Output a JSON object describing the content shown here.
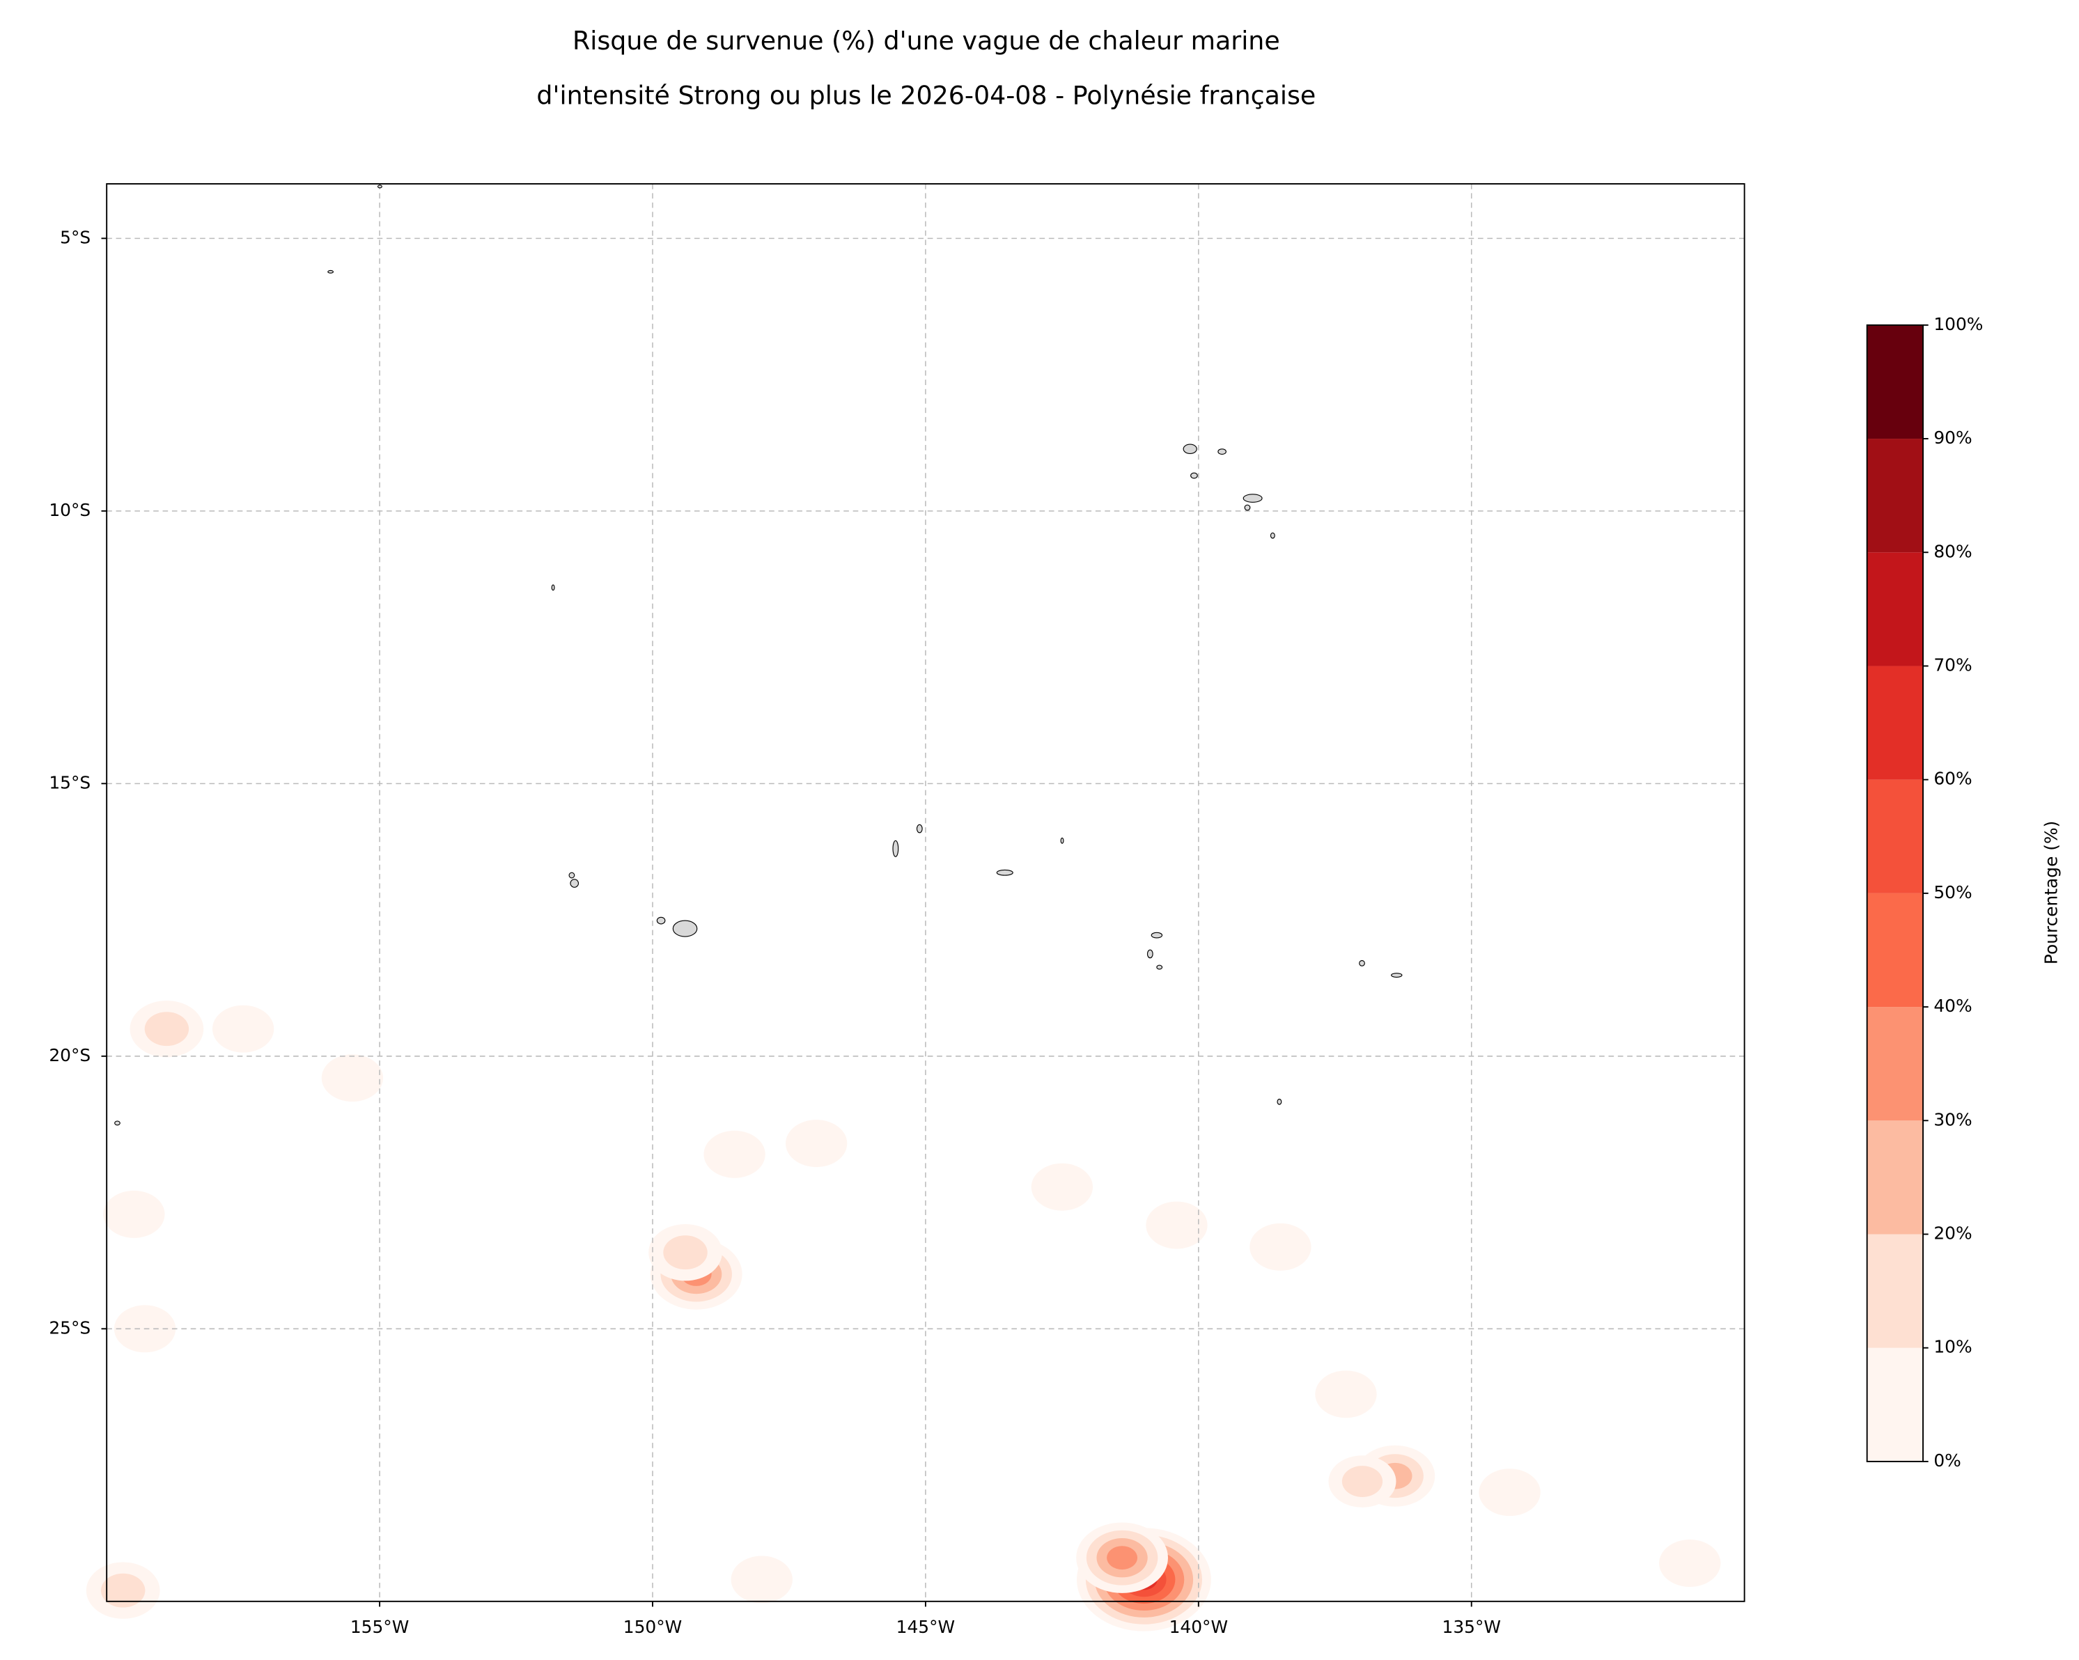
{
  "chart_data": {
    "type": "contour-map",
    "title_lines": [
      "Risque de survenue (%) d'une vague de chaleur marine",
      "d'intensité Strong ou plus le 2026-04-08 - Polynésie française"
    ],
    "xlim": [
      -160,
      -130
    ],
    "ylim": [
      -30,
      -4
    ],
    "xticks": [
      {
        "value": -155,
        "label": "155°W"
      },
      {
        "value": -150,
        "label": "150°W"
      },
      {
        "value": -145,
        "label": "145°W"
      },
      {
        "value": -140,
        "label": "140°W"
      },
      {
        "value": -135,
        "label": "135°W"
      }
    ],
    "yticks": [
      {
        "value": -5,
        "label": "5°S"
      },
      {
        "value": -10,
        "label": "10°S"
      },
      {
        "value": -15,
        "label": "15°S"
      },
      {
        "value": -20,
        "label": "20°S"
      },
      {
        "value": -25,
        "label": "25°S"
      }
    ],
    "grid": true,
    "field": {
      "lon": [
        -141.0,
        -141.4,
        -149.2,
        -149.4,
        -136.4,
        -137.0,
        -158.9,
        -157.5,
        -155.5,
        -147.0,
        -148.5,
        -159.3,
        -159.5,
        -142.5,
        -138.5,
        -159.7,
        -148.0,
        -131.0,
        -140.4,
        -134.3,
        -137.3
      ],
      "lat": [
        -29.6,
        -29.2,
        -24.0,
        -23.6,
        -27.7,
        -27.8,
        -19.5,
        -19.5,
        -20.4,
        -21.6,
        -21.8,
        -25.0,
        -22.9,
        -22.4,
        -23.5,
        -29.8,
        -29.6,
        -29.3,
        -23.1,
        -28.0,
        -26.2
      ],
      "values": [
        65,
        30,
        30,
        15,
        20,
        10,
        15,
        5,
        5,
        5,
        5,
        5,
        5,
        5,
        5,
        15,
        5,
        5,
        5,
        5,
        5
      ]
    },
    "colorbar": {
      "label": "Pourcentage (%)",
      "lim": [
        0,
        100
      ],
      "ticks": [
        {
          "value": 0,
          "label": "0%"
        },
        {
          "value": 10,
          "label": "10%"
        },
        {
          "value": 20,
          "label": "20%"
        },
        {
          "value": 30,
          "label": "30%"
        },
        {
          "value": 40,
          "label": "40%"
        },
        {
          "value": 50,
          "label": "50%"
        },
        {
          "value": 60,
          "label": "60%"
        },
        {
          "value": 70,
          "label": "70%"
        },
        {
          "value": 80,
          "label": "80%"
        },
        {
          "value": 90,
          "label": "90%"
        },
        {
          "value": 100,
          "label": "100%"
        }
      ],
      "colors": [
        "#fff5f0",
        "#fee0d2",
        "#fcbba1",
        "#fc9272",
        "#fb6a4a",
        "#f4513a",
        "#e32f27",
        "#c3161b",
        "#a10f15",
        "#67000d"
      ]
    }
  }
}
